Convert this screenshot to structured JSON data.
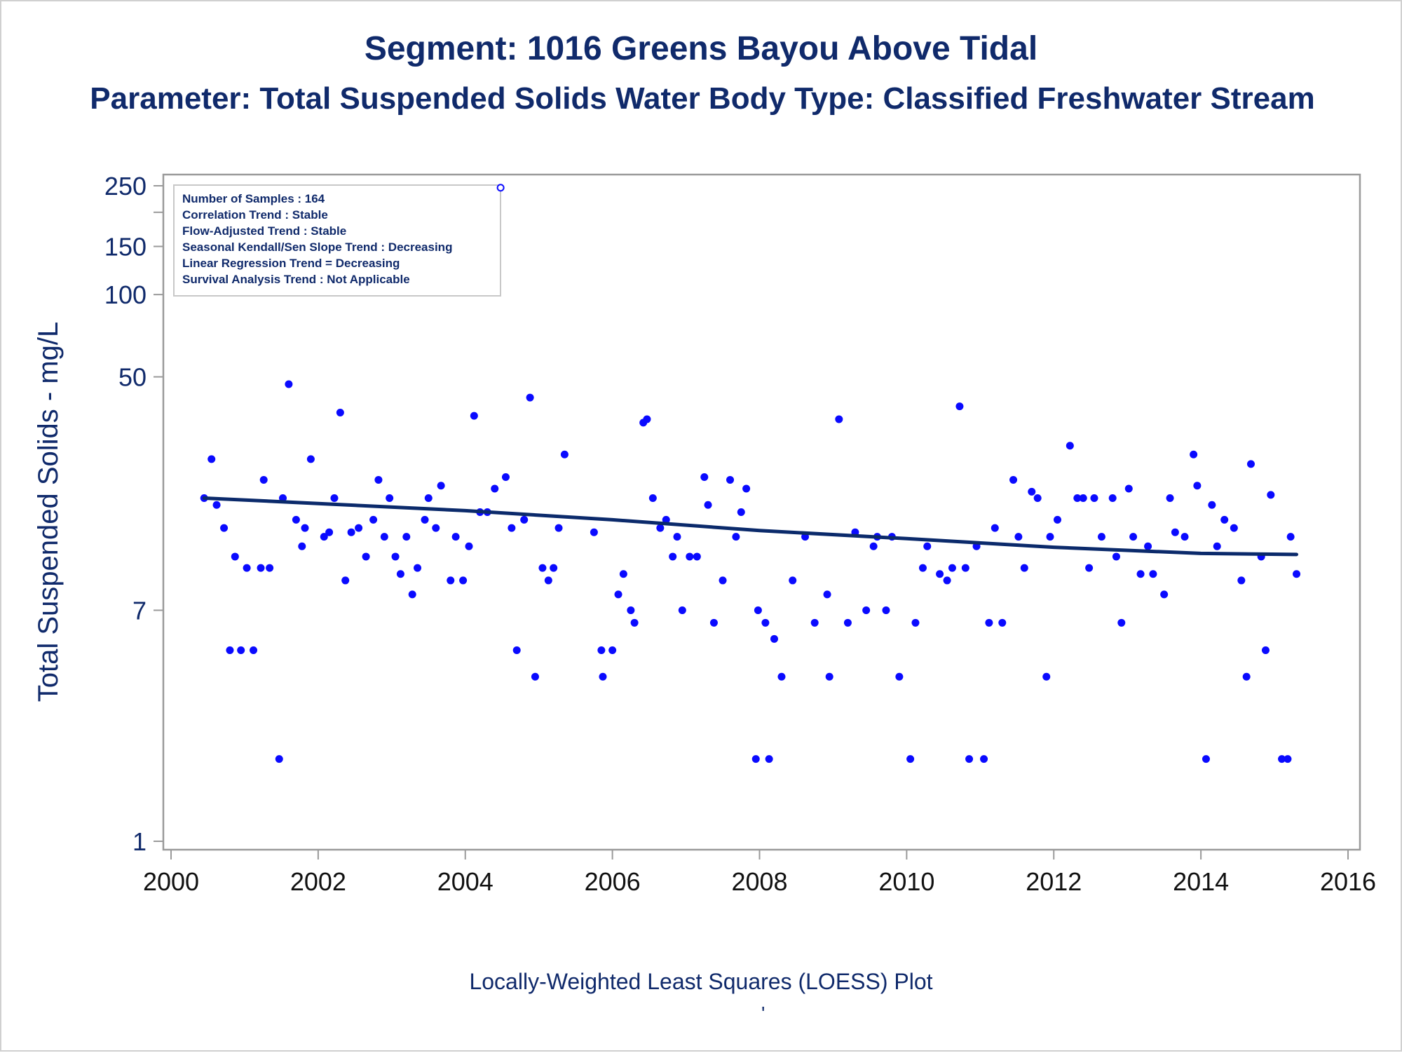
{
  "title": "Segment: 1016  Greens Bayou Above Tidal",
  "subtitle": "Parameter: Total Suspended Solids   Water Body Type: Classified Freshwater Stream",
  "footnote": "Locally-Weighted Least Squares (LOESS) Plot",
  "footnote_mark": "'",
  "colors": {
    "text": "#102a6b",
    "points": "#0a0aff",
    "trend": "#0b2a6b",
    "axis": "#9a9a9a"
  },
  "chart_data": {
    "type": "scatter",
    "title": "Segment: 1016  Greens Bayou Above Tidal",
    "subtitle": "Parameter: Total Suspended Solids   Water Body Type: Classified Freshwater Stream",
    "xlabel": "",
    "ylabel": "Total Suspended Solids - mg/L",
    "yscale": "log",
    "xlim": [
      2000,
      2016
    ],
    "ylim": [
      1,
      250
    ],
    "xticks": [
      2000,
      2002,
      2004,
      2006,
      2008,
      2010,
      2012,
      2014,
      2016
    ],
    "yticks": [
      1,
      7,
      50,
      100,
      150,
      250
    ],
    "y_minor_ticks": [
      200
    ],
    "grid": false,
    "legend": "none",
    "info_box": {
      "placement": "top-left",
      "lines": [
        "Number of Samples : 164",
        "Correlation Trend : Stable",
        "Flow-Adjusted Trend : Stable",
        "Seasonal Kendall/Sen Slope Trend : Decreasing",
        "Linear Regression Trend = Decreasing",
        "Survival Analysis Trend : Not Applicable"
      ]
    },
    "series": [
      {
        "type": "scatter",
        "points": [
          [
            2000.45,
            18
          ],
          [
            2000.55,
            25
          ],
          [
            2000.62,
            17
          ],
          [
            2000.72,
            14
          ],
          [
            2000.8,
            5
          ],
          [
            2000.87,
            11
          ],
          [
            2000.95,
            5
          ],
          [
            2001.03,
            10
          ],
          [
            2001.12,
            5
          ],
          [
            2001.22,
            10
          ],
          [
            2001.26,
            21
          ],
          [
            2001.34,
            10
          ],
          [
            2001.47,
            2
          ],
          [
            2001.52,
            18
          ],
          [
            2001.6,
            47
          ],
          [
            2001.7,
            15
          ],
          [
            2001.78,
            12
          ],
          [
            2001.82,
            14
          ],
          [
            2001.9,
            25
          ],
          [
            2002.08,
            13
          ],
          [
            2002.15,
            13.5
          ],
          [
            2002.22,
            18
          ],
          [
            2002.3,
            37
          ],
          [
            2002.37,
            9
          ],
          [
            2002.45,
            13.5
          ],
          [
            2002.55,
            14
          ],
          [
            2002.65,
            11
          ],
          [
            2002.75,
            15
          ],
          [
            2002.82,
            21
          ],
          [
            2002.9,
            13
          ],
          [
            2002.97,
            18
          ],
          [
            2003.05,
            11
          ],
          [
            2003.12,
            9.5
          ],
          [
            2003.2,
            13
          ],
          [
            2003.28,
            8
          ],
          [
            2003.35,
            10
          ],
          [
            2003.45,
            15
          ],
          [
            2003.5,
            18
          ],
          [
            2003.6,
            14
          ],
          [
            2003.67,
            20
          ],
          [
            2003.8,
            9
          ],
          [
            2003.87,
            13
          ],
          [
            2003.97,
            9
          ],
          [
            2004.05,
            12
          ],
          [
            2004.12,
            36
          ],
          [
            2004.2,
            16
          ],
          [
            2004.3,
            16
          ],
          [
            2004.4,
            19.5
          ],
          [
            2004.48,
            246
          ],
          [
            2004.55,
            21.5
          ],
          [
            2004.63,
            14
          ],
          [
            2004.7,
            5
          ],
          [
            2004.8,
            15
          ],
          [
            2004.88,
            42
          ],
          [
            2004.95,
            4
          ],
          [
            2005.05,
            10
          ],
          [
            2005.13,
            9
          ],
          [
            2005.2,
            10
          ],
          [
            2005.27,
            14
          ],
          [
            2005.35,
            26
          ],
          [
            2005.75,
            13.5
          ],
          [
            2005.85,
            5
          ],
          [
            2005.87,
            4
          ],
          [
            2006.0,
            5
          ],
          [
            2006.08,
            8
          ],
          [
            2006.15,
            9.5
          ],
          [
            2006.25,
            7
          ],
          [
            2006.3,
            6.3
          ],
          [
            2006.42,
            34
          ],
          [
            2006.47,
            35
          ],
          [
            2006.55,
            18
          ],
          [
            2006.65,
            14
          ],
          [
            2006.73,
            15
          ],
          [
            2006.82,
            11
          ],
          [
            2006.88,
            13
          ],
          [
            2006.95,
            7
          ],
          [
            2007.05,
            11
          ],
          [
            2007.15,
            11
          ],
          [
            2007.25,
            21.5
          ],
          [
            2007.3,
            17
          ],
          [
            2007.38,
            6.3
          ],
          [
            2007.5,
            9
          ],
          [
            2007.6,
            21
          ],
          [
            2007.68,
            13
          ],
          [
            2007.75,
            16
          ],
          [
            2007.82,
            19.5
          ],
          [
            2007.95,
            2
          ],
          [
            2007.98,
            7
          ],
          [
            2008.08,
            6.3
          ],
          [
            2008.13,
            2
          ],
          [
            2008.2,
            5.5
          ],
          [
            2008.3,
            4
          ],
          [
            2008.45,
            9
          ],
          [
            2008.62,
            13
          ],
          [
            2008.75,
            6.3
          ],
          [
            2008.92,
            8
          ],
          [
            2008.95,
            4
          ],
          [
            2009.08,
            35
          ],
          [
            2009.2,
            6.3
          ],
          [
            2009.3,
            13.5
          ],
          [
            2009.45,
            7
          ],
          [
            2009.55,
            12
          ],
          [
            2009.6,
            13
          ],
          [
            2009.72,
            7
          ],
          [
            2009.8,
            13
          ],
          [
            2009.9,
            4
          ],
          [
            2010.05,
            2
          ],
          [
            2010.12,
            6.3
          ],
          [
            2010.22,
            10
          ],
          [
            2010.28,
            12
          ],
          [
            2010.45,
            9.5
          ],
          [
            2010.55,
            9
          ],
          [
            2010.62,
            10
          ],
          [
            2010.72,
            39
          ],
          [
            2010.8,
            10
          ],
          [
            2010.85,
            2
          ],
          [
            2010.95,
            12
          ],
          [
            2011.05,
            2
          ],
          [
            2011.12,
            6.3
          ],
          [
            2011.2,
            14
          ],
          [
            2011.3,
            6.3
          ],
          [
            2011.45,
            21
          ],
          [
            2011.52,
            13
          ],
          [
            2011.6,
            10
          ],
          [
            2011.7,
            19
          ],
          [
            2011.78,
            18
          ],
          [
            2011.9,
            4
          ],
          [
            2011.95,
            13
          ],
          [
            2012.05,
            15
          ],
          [
            2012.22,
            28
          ],
          [
            2012.32,
            18
          ],
          [
            2012.4,
            18
          ],
          [
            2012.48,
            10
          ],
          [
            2012.55,
            18
          ],
          [
            2012.65,
            13
          ],
          [
            2012.8,
            18
          ],
          [
            2012.85,
            11
          ],
          [
            2012.92,
            6.3
          ],
          [
            2013.02,
            19.5
          ],
          [
            2013.08,
            13
          ],
          [
            2013.18,
            9.5
          ],
          [
            2013.28,
            12
          ],
          [
            2013.35,
            9.5
          ],
          [
            2013.5,
            8
          ],
          [
            2013.58,
            18
          ],
          [
            2013.65,
            13.5
          ],
          [
            2013.78,
            13
          ],
          [
            2013.9,
            26
          ],
          [
            2013.95,
            20
          ],
          [
            2014.07,
            2
          ],
          [
            2014.15,
            17
          ],
          [
            2014.22,
            12
          ],
          [
            2014.32,
            15
          ],
          [
            2014.45,
            14
          ],
          [
            2014.55,
            9
          ],
          [
            2014.62,
            4
          ],
          [
            2014.68,
            24
          ],
          [
            2014.82,
            11
          ],
          [
            2014.88,
            5
          ],
          [
            2014.95,
            18.5
          ],
          [
            2015.1,
            2
          ],
          [
            2015.18,
            2
          ],
          [
            2015.22,
            13
          ],
          [
            2015.3,
            9.5
          ]
        ]
      },
      {
        "type": "line",
        "points": [
          [
            2000.45,
            18
          ],
          [
            2002,
            17.2
          ],
          [
            2004,
            16.2
          ],
          [
            2006,
            15
          ],
          [
            2008,
            13.7
          ],
          [
            2010,
            12.8
          ],
          [
            2012,
            11.9
          ],
          [
            2014,
            11.3
          ],
          [
            2015.3,
            11.2
          ]
        ]
      }
    ]
  }
}
